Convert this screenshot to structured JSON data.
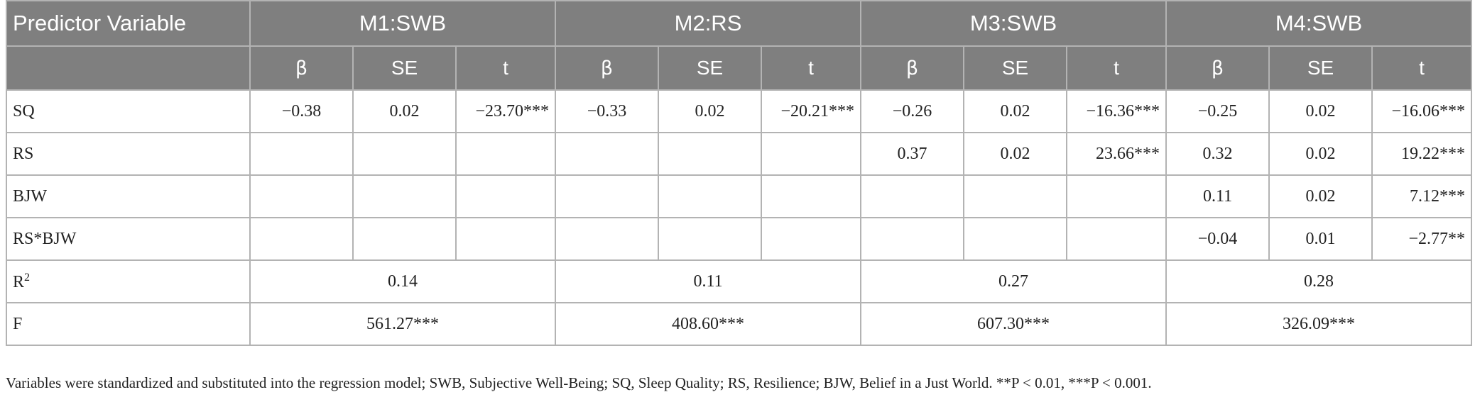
{
  "table": {
    "header": {
      "predictor": "Predictor Variable",
      "models": [
        "M1:SWB",
        "M2:RS",
        "M3:SWB",
        "M4:SWB"
      ]
    },
    "subheaders": [
      "β",
      "SE",
      "t"
    ],
    "rows": [
      {
        "label": "SQ",
        "cells": [
          "−0.38",
          "0.02",
          "−23.70***",
          "−0.33",
          "0.02",
          "−20.21***",
          "−0.26",
          "0.02",
          "−16.36***",
          "−0.25",
          "0.02",
          "−16.06***"
        ]
      },
      {
        "label": "RS",
        "cells": [
          "",
          "",
          "",
          "",
          "",
          "",
          "0.37",
          "0.02",
          "23.66***",
          "0.32",
          "0.02",
          "19.22***"
        ]
      },
      {
        "label": "BJW",
        "cells": [
          "",
          "",
          "",
          "",
          "",
          "",
          "",
          "",
          "",
          "0.11",
          "0.02",
          "7.12***"
        ]
      },
      {
        "label": "RS*BJW",
        "cells": [
          "",
          "",
          "",
          "",
          "",
          "",
          "",
          "",
          "",
          "−0.04",
          "0.01",
          "−2.77**"
        ]
      }
    ],
    "r2": {
      "label_base": "R",
      "label_sup": "2",
      "values": [
        "0.14",
        "0.11",
        "0.27",
        "0.28"
      ]
    },
    "f": {
      "label": "F",
      "values": [
        "561.27***",
        "408.60***",
        "607.30***",
        "326.09***"
      ]
    }
  },
  "note": "Variables were standardized and substituted into the regression model; SWB, Subjective Well-Being; SQ, Sleep Quality; RS, Resilience; BJW, Belief in a Just World. **P < 0.01, ***P < 0.001."
}
